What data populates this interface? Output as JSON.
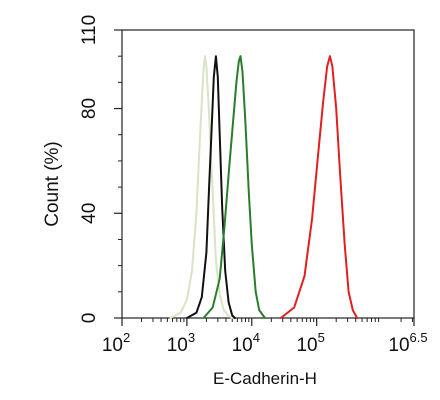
{
  "chart_data": {
    "type": "line",
    "title": "",
    "xlabel": "E-Cadherin-H",
    "ylabel": "Count  (%)",
    "x_scale": "log10",
    "xlim": [
      100,
      3162277.66
    ],
    "ylim": [
      0,
      110
    ],
    "x_ticks": [
      {
        "value": 100,
        "base": "10",
        "exp": "2"
      },
      {
        "value": 1000,
        "base": "10",
        "exp": "3"
      },
      {
        "value": 10000,
        "base": "10",
        "exp": "4"
      },
      {
        "value": 100000,
        "base": "10",
        "exp": "5"
      },
      {
        "value": 3162277.66,
        "base": "10",
        "exp": "6.5"
      }
    ],
    "y_ticks": [
      0,
      40,
      80,
      110
    ],
    "grid": false,
    "legend": "none",
    "series": [
      {
        "color": "#d9e3c6",
        "peak_x": 1900,
        "peak_y": 100,
        "x": [
          560,
          800,
          1000,
          1200,
          1400,
          1600,
          1800,
          1900,
          2000,
          2200,
          2500,
          2800,
          3200,
          3700,
          4300,
          5000
        ],
        "y": [
          0,
          2,
          7,
          18,
          40,
          70,
          95,
          100,
          96,
          78,
          48,
          22,
          9,
          3,
          1,
          0
        ]
      },
      {
        "color": "#111111",
        "peak_x": 2800,
        "peak_y": 100,
        "x": [
          1000,
          1400,
          1700,
          2000,
          2200,
          2400,
          2600,
          2800,
          3000,
          3200,
          3500,
          3900,
          4400,
          5000,
          5500
        ],
        "y": [
          0,
          2,
          8,
          25,
          50,
          72,
          92,
          100,
          92,
          70,
          42,
          18,
          6,
          1,
          0
        ]
      },
      {
        "color": "#2a7d2a",
        "peak_x": 6500,
        "peak_y": 100,
        "x": [
          1800,
          2500,
          3200,
          3800,
          4500,
          5200,
          5800,
          6300,
          6700,
          7200,
          8000,
          9000,
          10000,
          11500,
          13000,
          16000
        ],
        "y": [
          0,
          4,
          15,
          35,
          58,
          76,
          90,
          98,
          100,
          94,
          74,
          48,
          28,
          10,
          3,
          0
        ]
      },
      {
        "color": "#e02020",
        "peak_x": 160000,
        "peak_y": 100,
        "x": [
          28000,
          45000,
          65000,
          85000,
          105000,
          125000,
          145000,
          160000,
          175000,
          200000,
          230000,
          270000,
          310000,
          360000,
          420000
        ],
        "y": [
          0,
          4,
          16,
          38,
          62,
          82,
          96,
          100,
          96,
          80,
          55,
          28,
          10,
          3,
          0
        ]
      }
    ]
  }
}
